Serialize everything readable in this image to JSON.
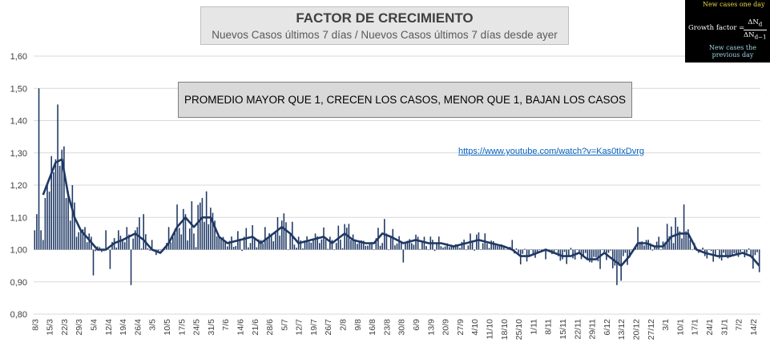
{
  "header": {
    "title": "FACTOR DE CRECIMIENTO",
    "subtitle": "Nuevos Casos últimos 7 días / Nuevos Casos últimos 7 días desde ayer"
  },
  "annotation": "PROMEDIO MAYOR QUE 1, CRECEN LOS CASOS, MENOR QUE 1, BAJAN LOS CASOS",
  "link_text": "https://www.youtube.com/watch?v=Kas0tIxDvrg",
  "formula": {
    "top_note": "New cases one day",
    "label": "Growth factor =",
    "numerator": "ΔN",
    "numerator_sub": "d",
    "denominator": "ΔN",
    "denominator_sub": "d−1",
    "bottom_note_1": "New cases the",
    "bottom_note_2": "previous day"
  },
  "colors": {
    "series": "#1f3864",
    "grid": "#d9d9d9",
    "axis_text": "#404040"
  },
  "chart_data": {
    "type": "bar",
    "ylim": [
      0.8,
      1.6
    ],
    "yticks": [
      "0,80",
      "0,90",
      "1,00",
      "1,10",
      "1,20",
      "1,30",
      "1,40",
      "1,50",
      "1,60"
    ],
    "base": 1.0,
    "x_start": "2020-03-08",
    "days": 347,
    "xtick_labels": [
      "8/3",
      "15/3",
      "22/3",
      "29/3",
      "5/4",
      "12/4",
      "19/4",
      "26/4",
      "3/5",
      "10/5",
      "17/5",
      "24/5",
      "31/5",
      "7/6",
      "14/6",
      "21/6",
      "28/6",
      "5/7",
      "12/7",
      "19/7",
      "26/7",
      "2/8",
      "9/8",
      "16/8",
      "23/8",
      "30/8",
      "6/9",
      "13/9",
      "20/9",
      "27/9",
      "4/10",
      "11/10",
      "18/10",
      "25/10",
      "1/11",
      "8/11",
      "15/11",
      "22/11",
      "29/11",
      "6/12",
      "13/12",
      "20/12",
      "27/12",
      "3/1",
      "10/1",
      "17/1",
      "24/1",
      "31/1",
      "7/2",
      "14/2"
    ],
    "grid": true,
    "series": [
      {
        "type": "bar",
        "keypoints": [
          [
            0,
            1.06
          ],
          [
            1,
            1.11
          ],
          [
            2,
            1.5
          ],
          [
            3,
            1.06
          ],
          [
            4,
            1.03
          ],
          [
            5,
            1.16
          ],
          [
            6,
            1.2
          ],
          [
            7,
            1.18
          ],
          [
            8,
            1.29
          ],
          [
            9,
            1.24
          ],
          [
            10,
            1.28
          ],
          [
            11,
            1.45
          ],
          [
            12,
            1.26
          ],
          [
            13,
            1.31
          ],
          [
            14,
            1.32
          ],
          [
            15,
            1.16
          ],
          [
            16,
            1.18
          ],
          [
            17,
            1.09
          ],
          [
            18,
            1.2
          ],
          [
            20,
            1.04
          ],
          [
            22,
            1.06
          ],
          [
            24,
            1.07
          ],
          [
            26,
            1.05
          ],
          [
            28,
            0.92
          ],
          [
            30,
            1.01
          ],
          [
            34,
            1.06
          ],
          [
            36,
            0.94
          ],
          [
            40,
            1.06
          ],
          [
            42,
            1.03
          ],
          [
            44,
            1.07
          ],
          [
            46,
            0.89
          ],
          [
            48,
            1.06
          ],
          [
            50,
            1.1
          ],
          [
            52,
            1.11
          ],
          [
            56,
            1.03
          ],
          [
            60,
            1.0
          ],
          [
            64,
            1.07
          ],
          [
            68,
            1.14
          ],
          [
            72,
            1.11
          ],
          [
            76,
            1.05
          ],
          [
            80,
            1.16
          ],
          [
            84,
            1.13
          ],
          [
            88,
            1.04
          ],
          [
            92,
            1.01
          ],
          [
            100,
            1.04
          ],
          [
            110,
            1.07
          ],
          [
            118,
            1.09
          ],
          [
            126,
            1.04
          ],
          [
            134,
            1.05
          ],
          [
            142,
            1.03
          ],
          [
            150,
            1.08
          ],
          [
            160,
            1.02
          ],
          [
            170,
            1.04
          ],
          [
            176,
            0.96
          ],
          [
            186,
            1.04
          ],
          [
            196,
            1.01
          ],
          [
            206,
            1.0
          ],
          [
            214,
            1.02
          ],
          [
            220,
            1.02
          ],
          [
            228,
            1.03
          ],
          [
            236,
            0.98
          ],
          [
            244,
            0.97
          ],
          [
            252,
            0.97
          ],
          [
            260,
            0.99
          ],
          [
            266,
            0.96
          ],
          [
            270,
            0.94
          ],
          [
            274,
            0.99
          ],
          [
            278,
            0.89
          ],
          [
            282,
            0.99
          ],
          [
            288,
            1.07
          ],
          [
            292,
            1.03
          ],
          [
            298,
            1.04
          ],
          [
            302,
            1.08
          ],
          [
            306,
            1.1
          ],
          [
            310,
            1.14
          ],
          [
            314,
            1.0
          ],
          [
            320,
            0.98
          ],
          [
            330,
            0.98
          ],
          [
            340,
            0.99
          ],
          [
            346,
            0.93
          ]
        ]
      },
      {
        "type": "line",
        "name": "",
        "keypoints": [
          [
            4,
            1.17
          ],
          [
            7,
            1.22
          ],
          [
            10,
            1.27
          ],
          [
            13,
            1.28
          ],
          [
            16,
            1.17
          ],
          [
            19,
            1.1
          ],
          [
            22,
            1.06
          ],
          [
            26,
            1.03
          ],
          [
            30,
            1.0
          ],
          [
            34,
            1.0
          ],
          [
            38,
            1.02
          ],
          [
            42,
            1.03
          ],
          [
            48,
            1.05
          ],
          [
            52,
            1.03
          ],
          [
            56,
            1.0
          ],
          [
            60,
            0.99
          ],
          [
            64,
            1.02
          ],
          [
            68,
            1.07
          ],
          [
            72,
            1.1
          ],
          [
            76,
            1.07
          ],
          [
            80,
            1.1
          ],
          [
            84,
            1.1
          ],
          [
            88,
            1.04
          ],
          [
            92,
            1.02
          ],
          [
            98,
            1.03
          ],
          [
            104,
            1.04
          ],
          [
            108,
            1.02
          ],
          [
            114,
            1.05
          ],
          [
            118,
            1.07
          ],
          [
            122,
            1.05
          ],
          [
            126,
            1.02
          ],
          [
            132,
            1.03
          ],
          [
            138,
            1.04
          ],
          [
            142,
            1.02
          ],
          [
            148,
            1.05
          ],
          [
            152,
            1.03
          ],
          [
            158,
            1.02
          ],
          [
            162,
            1.02
          ],
          [
            166,
            1.05
          ],
          [
            170,
            1.04
          ],
          [
            176,
            1.02
          ],
          [
            182,
            1.03
          ],
          [
            188,
            1.02
          ],
          [
            194,
            1.02
          ],
          [
            200,
            1.01
          ],
          [
            206,
            1.02
          ],
          [
            212,
            1.03
          ],
          [
            218,
            1.02
          ],
          [
            224,
            1.01
          ],
          [
            228,
            1.0
          ],
          [
            232,
            0.98
          ],
          [
            236,
            0.98
          ],
          [
            240,
            0.99
          ],
          [
            244,
            1.0
          ],
          [
            248,
            0.99
          ],
          [
            252,
            0.98
          ],
          [
            256,
            0.98
          ],
          [
            260,
            0.99
          ],
          [
            264,
            0.97
          ],
          [
            268,
            0.97
          ],
          [
            272,
            0.99
          ],
          [
            276,
            0.97
          ],
          [
            280,
            0.95
          ],
          [
            284,
            0.98
          ],
          [
            288,
            1.02
          ],
          [
            292,
            1.02
          ],
          [
            296,
            1.01
          ],
          [
            300,
            1.01
          ],
          [
            304,
            1.04
          ],
          [
            308,
            1.05
          ],
          [
            312,
            1.05
          ],
          [
            316,
            1.0
          ],
          [
            320,
            0.99
          ],
          [
            326,
            0.98
          ],
          [
            332,
            0.98
          ],
          [
            338,
            0.99
          ],
          [
            342,
            0.98
          ],
          [
            346,
            0.95
          ]
        ]
      }
    ]
  }
}
